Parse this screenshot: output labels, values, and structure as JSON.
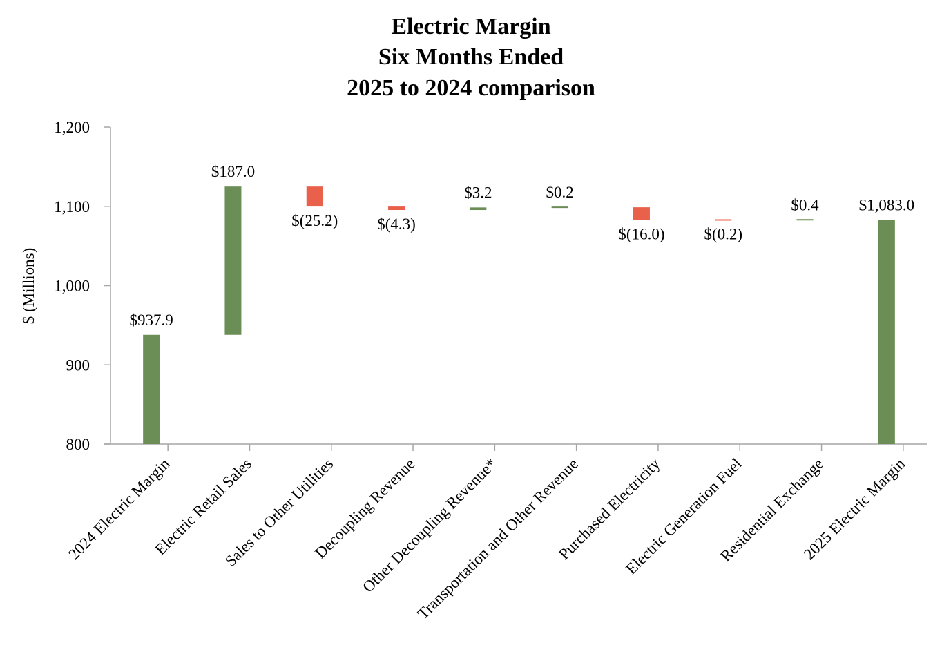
{
  "chart_data": {
    "type": "bar",
    "subtype": "waterfall",
    "title_lines": [
      "Electric Margin",
      "Six Months Ended",
      "2025 to 2024 comparison"
    ],
    "ylabel": "$ (Millions)",
    "xlabel": "",
    "ylim": [
      800,
      1200
    ],
    "yticks": [
      800,
      900,
      1000,
      1100,
      1200
    ],
    "ytick_labels": [
      "800",
      "900",
      "1,000",
      "1,100",
      "1,200"
    ],
    "grid": false,
    "legend": "none",
    "colors": {
      "increase": "#6a8e55",
      "decrease": "#e9604b",
      "total": "#6a8e55",
      "axis": "#a6a6a6"
    },
    "bars": [
      {
        "category": "2024 Electric Margin",
        "kind": "total",
        "start": 0,
        "end": 937.9,
        "label": "$937.9"
      },
      {
        "category": "Electric Retail Sales",
        "kind": "increase",
        "start": 937.9,
        "end": 1124.9,
        "label": "$187.0"
      },
      {
        "category": "Sales to Other Utilities",
        "kind": "decrease",
        "start": 1124.9,
        "end": 1099.7,
        "label": "$(25.2)"
      },
      {
        "category": "Decoupling Revenue",
        "kind": "decrease",
        "start": 1099.7,
        "end": 1095.4,
        "label": "$(4.3)"
      },
      {
        "category": "Other Decoupling Revenue*",
        "kind": "increase",
        "start": 1095.4,
        "end": 1098.6,
        "label": "$3.2"
      },
      {
        "category": "Transportation and Other Revenue",
        "kind": "increase",
        "start": 1098.6,
        "end": 1098.8,
        "label": "$0.2"
      },
      {
        "category": "Purchased Electricity",
        "kind": "decrease",
        "start": 1098.8,
        "end": 1082.8,
        "label": "$(16.0)"
      },
      {
        "category": "Electric Generation Fuel",
        "kind": "decrease",
        "start": 1082.8,
        "end": 1082.6,
        "label": "$(0.2)"
      },
      {
        "category": "Residential Exchange",
        "kind": "increase",
        "start": 1082.6,
        "end": 1083.0,
        "label": "$0.4"
      },
      {
        "category": "2025 Electric Margin",
        "kind": "total",
        "start": 0,
        "end": 1083.0,
        "label": "$1,083.0"
      }
    ]
  }
}
